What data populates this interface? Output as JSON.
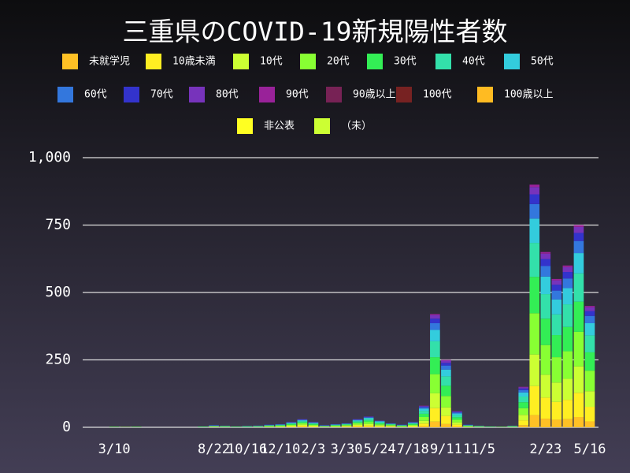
{
  "chart_data": {
    "type": "bar",
    "stacked": true,
    "title": "三重県のCOVID-19新規陽性者数",
    "categories": [
      null,
      null,
      null,
      "3/10",
      null,
      null,
      null,
      null,
      null,
      null,
      null,
      null,
      "8/22",
      null,
      null,
      "10/16",
      null,
      null,
      "12/10",
      null,
      null,
      "2/3",
      null,
      null,
      "3/30",
      null,
      null,
      "5/24",
      null,
      null,
      "7/18",
      null,
      null,
      "9/11",
      null,
      null,
      "11/5",
      null,
      null,
      null,
      null,
      null,
      "2/23",
      null,
      null,
      null,
      "5/16"
    ],
    "ylim": [
      0,
      1000
    ],
    "yticks": [
      0,
      250,
      500,
      750,
      {
        "value": 1000,
        "label": "1,000"
      }
    ],
    "grid": true,
    "series": [
      {
        "name": "未就学児",
        "color": "#ffc125",
        "values": [
          0,
          0,
          0,
          0,
          0,
          0,
          0,
          0,
          0,
          0,
          0,
          0,
          0,
          0,
          0,
          0,
          0,
          0,
          0,
          1,
          2,
          1,
          0,
          0,
          1,
          2,
          2,
          1,
          1,
          0,
          1,
          4,
          21,
          12,
          3,
          0,
          0,
          0,
          0,
          0,
          8,
          45,
          32,
          28,
          30,
          38,
          22
        ]
      },
      {
        "name": "10歳未満",
        "color": "#ffee22",
        "values": [
          0,
          0,
          0,
          0,
          0,
          0,
          0,
          0,
          0,
          0,
          0,
          0,
          1,
          0,
          0,
          0,
          0,
          1,
          1,
          2,
          4,
          2,
          1,
          1,
          2,
          4,
          5,
          3,
          2,
          1,
          2,
          10,
          50,
          30,
          7,
          1,
          0,
          0,
          0,
          0,
          18,
          108,
          78,
          66,
          72,
          90,
          54
        ]
      },
      {
        "name": "10代",
        "color": "#ccff33",
        "values": [
          0,
          0,
          0,
          0,
          0,
          0,
          0,
          0,
          0,
          0,
          0,
          0,
          1,
          1,
          0,
          0,
          1,
          1,
          2,
          3,
          4,
          3,
          1,
          2,
          2,
          4,
          5,
          3,
          2,
          1,
          3,
          10,
          55,
          32,
          8,
          1,
          1,
          0,
          0,
          1,
          20,
          117,
          85,
          72,
          78,
          98,
          58
        ]
      },
      {
        "name": "20代",
        "color": "#88ff33",
        "values": [
          0,
          0,
          0,
          1,
          1,
          1,
          0,
          0,
          0,
          0,
          0,
          1,
          1,
          1,
          1,
          1,
          1,
          2,
          2,
          3,
          5,
          3,
          1,
          2,
          3,
          5,
          7,
          4,
          3,
          2,
          3,
          14,
          71,
          42,
          10,
          2,
          1,
          1,
          1,
          1,
          25,
          153,
          110,
          94,
          102,
          128,
          76
        ]
      },
      {
        "name": "30代",
        "color": "#33ee55",
        "values": [
          0,
          0,
          0,
          1,
          0,
          1,
          0,
          0,
          0,
          0,
          0,
          1,
          1,
          1,
          1,
          1,
          1,
          2,
          2,
          3,
          4,
          3,
          1,
          2,
          2,
          4,
          6,
          4,
          2,
          2,
          3,
          12,
          63,
          38,
          9,
          2,
          1,
          1,
          1,
          1,
          22,
          135,
          98,
          82,
          90,
          112,
          68
        ]
      },
      {
        "name": "40代",
        "color": "#33e0aa",
        "values": [
          0,
          0,
          0,
          0,
          0,
          0,
          0,
          0,
          0,
          0,
          0,
          1,
          1,
          1,
          1,
          1,
          1,
          1,
          2,
          3,
          4,
          3,
          1,
          2,
          2,
          4,
          6,
          4,
          2,
          1,
          3,
          11,
          59,
          35,
          8,
          1,
          1,
          1,
          0,
          1,
          21,
          126,
          91,
          77,
          84,
          105,
          63
        ]
      },
      {
        "name": "50代",
        "color": "#33ccdd",
        "values": [
          0,
          0,
          0,
          0,
          0,
          0,
          0,
          0,
          0,
          0,
          0,
          0,
          1,
          1,
          0,
          1,
          1,
          1,
          1,
          2,
          3,
          2,
          1,
          1,
          1,
          3,
          4,
          3,
          1,
          1,
          2,
          8,
          42,
          25,
          6,
          1,
          1,
          0,
          0,
          1,
          15,
          90,
          65,
          55,
          60,
          75,
          45
        ]
      },
      {
        "name": "60代",
        "color": "#3377dd",
        "values": [
          0,
          0,
          0,
          0,
          0,
          0,
          0,
          0,
          0,
          0,
          0,
          0,
          1,
          0,
          0,
          0,
          1,
          1,
          1,
          1,
          2,
          1,
          1,
          1,
          1,
          2,
          2,
          1,
          1,
          1,
          1,
          5,
          25,
          15,
          4,
          1,
          0,
          0,
          0,
          0,
          9,
          54,
          39,
          33,
          36,
          45,
          27
        ]
      },
      {
        "name": "70代",
        "color": "#3333cc",
        "values": [
          0,
          0,
          0,
          0,
          0,
          0,
          0,
          0,
          0,
          0,
          0,
          0,
          1,
          0,
          0,
          0,
          0,
          1,
          1,
          1,
          1,
          1,
          1,
          1,
          1,
          1,
          2,
          1,
          1,
          1,
          1,
          3,
          17,
          10,
          2,
          1,
          0,
          0,
          0,
          0,
          6,
          36,
          26,
          22,
          24,
          30,
          18
        ]
      },
      {
        "name": "80代",
        "color": "#7733bb",
        "values": [
          0,
          0,
          0,
          0,
          0,
          0,
          0,
          0,
          0,
          0,
          0,
          0,
          0,
          0,
          0,
          0,
          0,
          0,
          0,
          1,
          1,
          1,
          0,
          0,
          0,
          1,
          1,
          1,
          0,
          0,
          1,
          2,
          13,
          8,
          2,
          0,
          0,
          0,
          0,
          0,
          4,
          27,
          20,
          16,
          18,
          22,
          14
        ]
      },
      {
        "name": "90代",
        "color": "#992299",
        "values": [
          0,
          0,
          0,
          0,
          0,
          0,
          0,
          0,
          0,
          0,
          0,
          0,
          0,
          0,
          0,
          0,
          0,
          0,
          0,
          0,
          0,
          0,
          0,
          0,
          0,
          0,
          0,
          0,
          0,
          0,
          0,
          1,
          4,
          3,
          1,
          0,
          0,
          0,
          0,
          0,
          2,
          9,
          6,
          5,
          6,
          7,
          5
        ]
      },
      {
        "name": "90歳以上",
        "color": "#772255",
        "values": [
          0,
          0,
          0,
          0,
          0,
          0,
          0,
          0,
          0,
          0,
          0,
          0,
          0,
          0,
          0,
          0,
          0,
          0,
          0,
          0,
          0,
          0,
          0,
          0,
          0,
          0,
          0,
          0,
          0,
          0,
          0,
          0,
          0,
          0,
          0,
          0,
          0,
          0,
          0,
          0,
          0,
          0,
          0,
          0,
          0,
          0,
          0
        ]
      },
      {
        "name": "100代",
        "color": "#772222",
        "values": [
          0,
          0,
          0,
          0,
          0,
          0,
          0,
          0,
          0,
          0,
          0,
          0,
          0,
          0,
          0,
          0,
          0,
          0,
          0,
          0,
          0,
          0,
          0,
          0,
          0,
          0,
          0,
          0,
          0,
          0,
          0,
          0,
          0,
          0,
          0,
          0,
          0,
          0,
          0,
          0,
          0,
          0,
          0,
          0,
          0,
          0,
          0
        ]
      },
      {
        "name": "100歳以上",
        "color": "#ffbb22",
        "values": [
          0,
          0,
          0,
          0,
          0,
          0,
          0,
          0,
          0,
          0,
          0,
          0,
          0,
          0,
          0,
          0,
          0,
          0,
          0,
          0,
          0,
          0,
          0,
          0,
          0,
          0,
          0,
          0,
          0,
          0,
          0,
          0,
          0,
          0,
          0,
          0,
          0,
          0,
          0,
          0,
          0,
          0,
          0,
          0,
          0,
          0,
          0
        ]
      },
      {
        "name": "非公表",
        "color": "#ffff22",
        "values": [
          0,
          0,
          0,
          0,
          0,
          0,
          0,
          0,
          0,
          0,
          0,
          0,
          0,
          0,
          0,
          0,
          0,
          0,
          0,
          0,
          0,
          0,
          0,
          0,
          0,
          0,
          0,
          0,
          0,
          0,
          0,
          0,
          0,
          0,
          0,
          0,
          0,
          0,
          0,
          0,
          0,
          0,
          0,
          0,
          0,
          0,
          0
        ]
      },
      {
        "name": "（未）",
        "color": "#ccff33",
        "values": [
          0,
          0,
          0,
          0,
          0,
          0,
          0,
          0,
          0,
          0,
          0,
          0,
          0,
          0,
          0,
          0,
          0,
          0,
          0,
          0,
          0,
          0,
          0,
          0,
          0,
          0,
          0,
          0,
          0,
          0,
          0,
          0,
          0,
          0,
          0,
          0,
          0,
          0,
          0,
          0,
          0,
          0,
          0,
          0,
          0,
          0,
          0
        ]
      }
    ]
  }
}
